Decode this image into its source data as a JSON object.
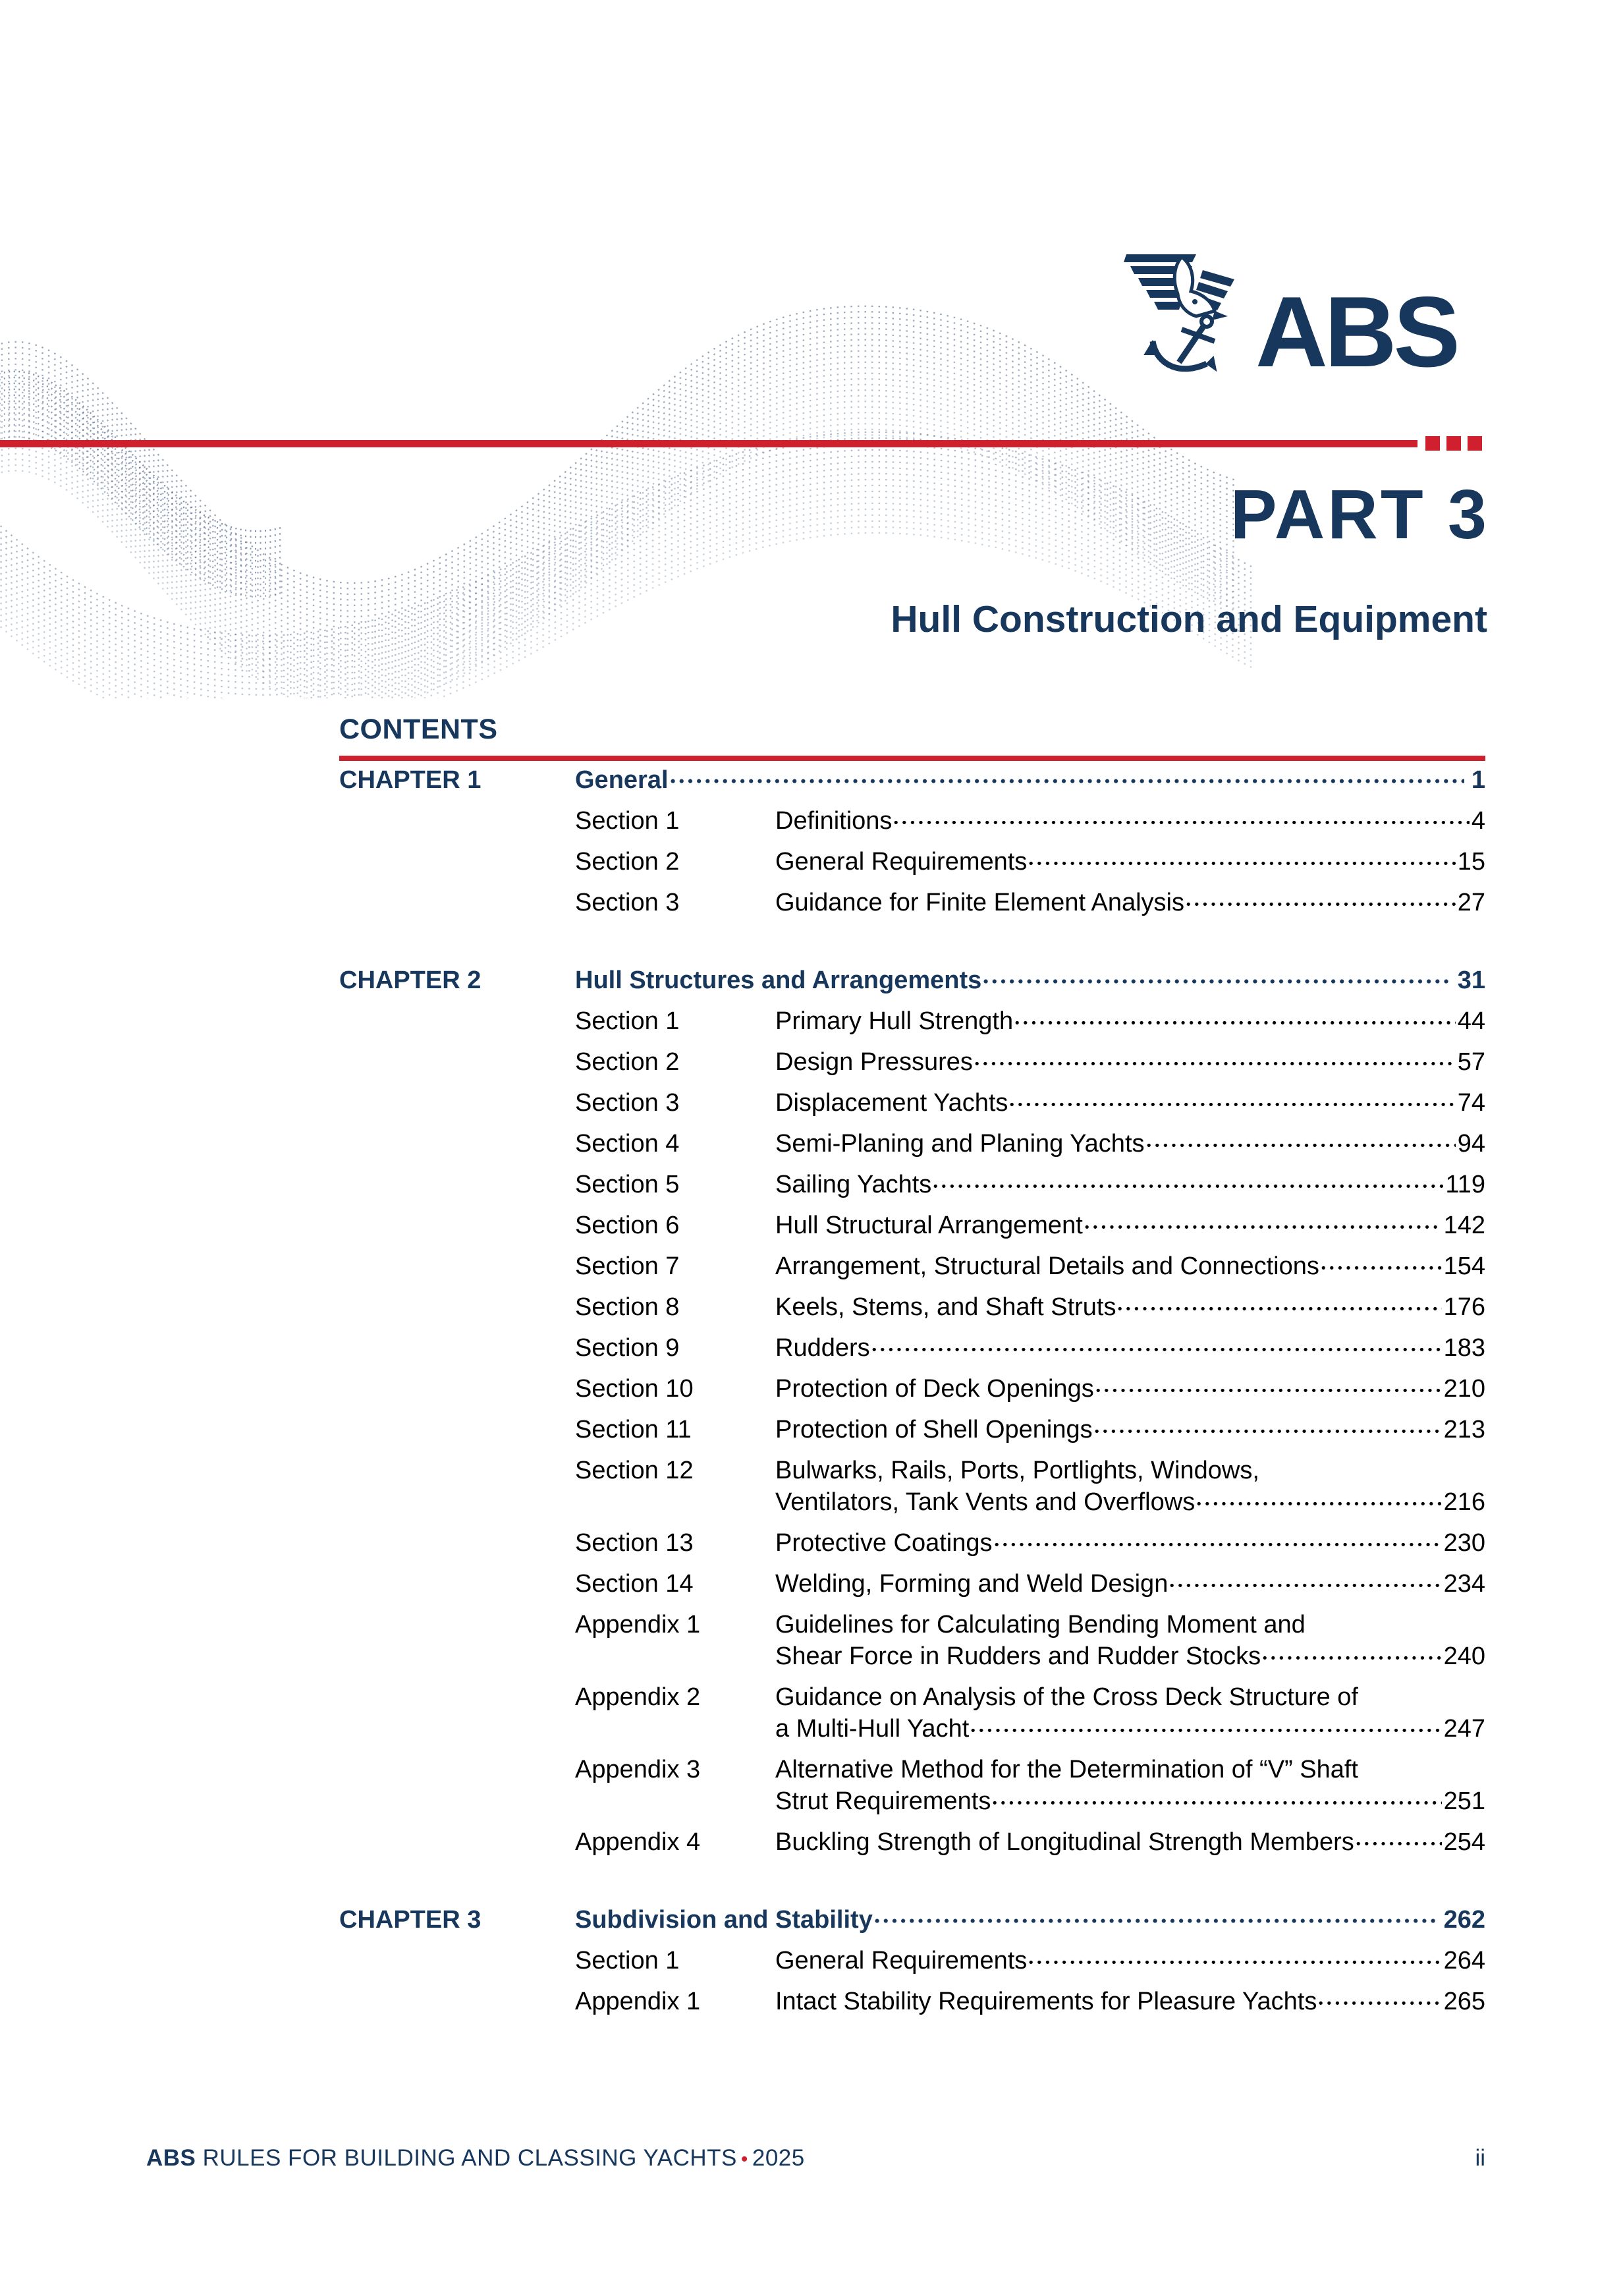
{
  "logo": {
    "brand": "ABS"
  },
  "header": {
    "part_label": "PART 3",
    "part_title": "Hull Construction and Equipment"
  },
  "contents": {
    "heading": "CONTENTS",
    "chapters": [
      {
        "label": "CHAPTER 1",
        "title": "General",
        "page": "1",
        "sections": [
          {
            "label": "Section 1",
            "lines": [
              "Definitions"
            ],
            "page": "4"
          },
          {
            "label": "Section 2",
            "lines": [
              "General Requirements"
            ],
            "page": "15"
          },
          {
            "label": "Section 3",
            "lines": [
              "Guidance for Finite Element Analysis"
            ],
            "page": "27"
          }
        ]
      },
      {
        "label": "CHAPTER 2",
        "title": "Hull Structures and Arrangements",
        "page": "31",
        "sections": [
          {
            "label": "Section 1",
            "lines": [
              "Primary Hull Strength"
            ],
            "page": "44"
          },
          {
            "label": "Section 2",
            "lines": [
              "Design Pressures"
            ],
            "page": "57"
          },
          {
            "label": "Section 3",
            "lines": [
              "Displacement Yachts"
            ],
            "page": "74"
          },
          {
            "label": "Section 4",
            "lines": [
              "Semi-Planing and Planing Yachts"
            ],
            "page": "94"
          },
          {
            "label": "Section 5",
            "lines": [
              "Sailing Yachts"
            ],
            "page": "119"
          },
          {
            "label": "Section 6",
            "lines": [
              "Hull Structural Arrangement"
            ],
            "page": "142"
          },
          {
            "label": "Section 7",
            "lines": [
              "Arrangement, Structural Details and Connections"
            ],
            "page": "154"
          },
          {
            "label": "Section 8",
            "lines": [
              "Keels, Stems, and Shaft Struts"
            ],
            "page": "176"
          },
          {
            "label": "Section 9",
            "lines": [
              "Rudders"
            ],
            "page": "183"
          },
          {
            "label": "Section 10",
            "lines": [
              "Protection of Deck Openings"
            ],
            "page": "210"
          },
          {
            "label": "Section 11",
            "lines": [
              "Protection of Shell Openings"
            ],
            "page": "213"
          },
          {
            "label": "Section 12",
            "lines": [
              "Bulwarks, Rails, Ports, Portlights, Windows,",
              "Ventilators, Tank Vents and Overflows"
            ],
            "page": "216"
          },
          {
            "label": "Section 13",
            "lines": [
              "Protective Coatings"
            ],
            "page": "230"
          },
          {
            "label": "Section 14",
            "lines": [
              "Welding, Forming and Weld Design"
            ],
            "page": "234"
          },
          {
            "label": "Appendix 1",
            "lines": [
              "Guidelines for Calculating Bending Moment and",
              "Shear Force in Rudders and Rudder Stocks"
            ],
            "page": "240"
          },
          {
            "label": "Appendix 2",
            "lines": [
              "Guidance on Analysis of the Cross Deck Structure of",
              "a Multi-Hull Yacht"
            ],
            "page": "247"
          },
          {
            "label": "Appendix 3",
            "lines": [
              "Alternative Method for the Determination of “V” Shaft",
              "Strut Requirements"
            ],
            "page": "251"
          },
          {
            "label": "Appendix 4",
            "lines": [
              "Buckling Strength of Longitudinal Strength Members"
            ],
            "page": "254"
          }
        ]
      },
      {
        "label": "CHAPTER 3",
        "title": "Subdivision and Stability",
        "page": "262",
        "sections": [
          {
            "label": "Section 1",
            "lines": [
              "General Requirements"
            ],
            "page": "264"
          },
          {
            "label": "Appendix 1",
            "lines": [
              "Intact Stability Requirements for Pleasure Yachts"
            ],
            "page": "265"
          }
        ]
      }
    ]
  },
  "footer": {
    "left_bold": "ABS",
    "left_rest": " RULES FOR BUILDING AND CLASSING YACHTS",
    "separator": "•",
    "year": "2025",
    "page_number": "ii"
  },
  "colors": {
    "navy": "#17375c",
    "red": "#cf202e",
    "wave": "#31507a"
  }
}
